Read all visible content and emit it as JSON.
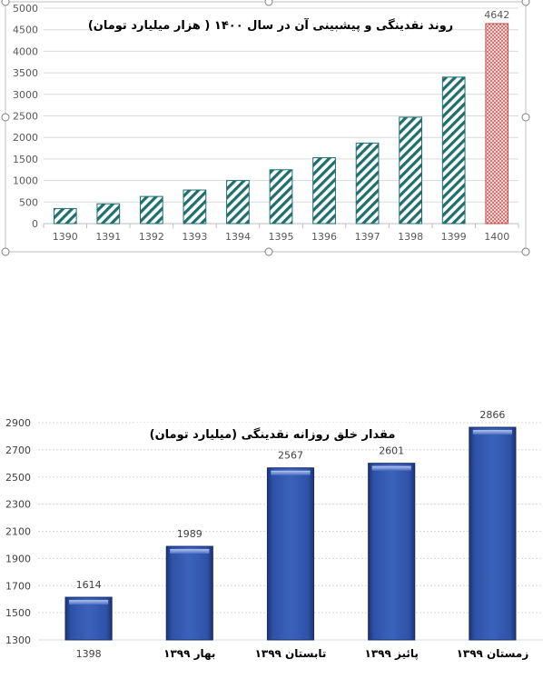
{
  "chart_data": [
    {
      "type": "bar",
      "title": "روند نقدینگی و پیشبینی آن در سال ۱۴۰۰ (  هزار میلیارد تومان)",
      "categories": [
        "1390",
        "1391",
        "1392",
        "1393",
        "1394",
        "1395",
        "1396",
        "1397",
        "1398",
        "1399",
        "1400"
      ],
      "values": [
        350,
        460,
        630,
        780,
        1000,
        1250,
        1530,
        1870,
        2470,
        3400,
        4642
      ],
      "data_labels": [
        {
          "index": 10,
          "text": "4642"
        }
      ],
      "ylim": [
        0,
        5000
      ],
      "yticks": [
        0,
        500,
        1000,
        1500,
        2000,
        2500,
        3000,
        3500,
        4000,
        4500,
        5000
      ],
      "grid": true,
      "colors": {
        "bars": "#1f6f6f",
        "highlight": "#c0504d"
      }
    },
    {
      "type": "bar",
      "title": "مقدار خلق روزانه نقدینگی (میلیارد تومان)",
      "categories": [
        "1398",
        "بهار ۱۳۹۹",
        "تابستان ۱۳۹۹",
        "پائیز ۱۳۹۹",
        "زمستان ۱۳۹۹"
      ],
      "values": [
        1614,
        1989,
        2567,
        2601,
        2866
      ],
      "data_labels": [
        "1614",
        "1989",
        "2567",
        "2601",
        "2866"
      ],
      "ylim": [
        1300,
        2900
      ],
      "yticks": [
        1300,
        1500,
        1700,
        1900,
        2100,
        2300,
        2500,
        2700,
        2900
      ],
      "grid": true,
      "colors": {
        "bars": "#2f4f9f"
      }
    }
  ]
}
